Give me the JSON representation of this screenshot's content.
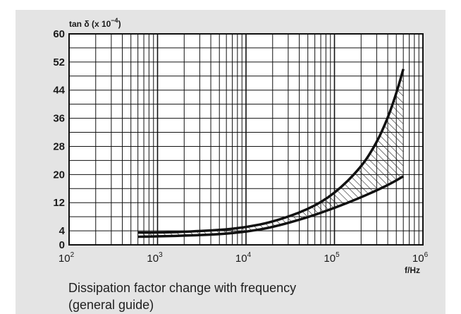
{
  "chart_data": {
    "type": "area",
    "title": "Dissipation factor change with frequency",
    "subtitle": "(general guide)",
    "ylabel_main": "tan δ (x 10",
    "ylabel_exp": "−4",
    "ylabel_close": ")",
    "xlabel": "f/Hz",
    "x_scale": "log",
    "xlim": [
      100,
      1000000
    ],
    "ylim": [
      0,
      60
    ],
    "x_ticks": [
      {
        "base": "10",
        "exp": "2",
        "value": 100
      },
      {
        "base": "10",
        "exp": "3",
        "value": 1000
      },
      {
        "base": "10",
        "exp": "4",
        "value": 10000
      },
      {
        "base": "10",
        "exp": "5",
        "value": 100000
      },
      {
        "base": "10",
        "exp": "6",
        "value": 1000000
      }
    ],
    "y_ticks": [
      "0",
      "4",
      "12",
      "20",
      "28",
      "36",
      "44",
      "52",
      "60"
    ],
    "grid": true,
    "series": [
      {
        "role": "upper bound",
        "x": [
          600,
          1000,
          2000,
          5000,
          10000,
          20000,
          50000,
          100000,
          200000,
          300000,
          400000,
          500000,
          600000
        ],
        "values": [
          3.5,
          3.5,
          3.7,
          4.2,
          5,
          6.5,
          10,
          14.5,
          22,
          29,
          36,
          43,
          50
        ]
      },
      {
        "role": "lower bound",
        "x": [
          600,
          1000,
          2000,
          5000,
          10000,
          20000,
          50000,
          100000,
          200000,
          300000,
          400000,
          500000,
          600000
        ],
        "values": [
          2.3,
          2.4,
          2.6,
          3,
          3.7,
          5,
          7.8,
          10.5,
          13.5,
          15.5,
          17,
          18.3,
          19.5
        ]
      }
    ],
    "band_fill": "hatched"
  }
}
